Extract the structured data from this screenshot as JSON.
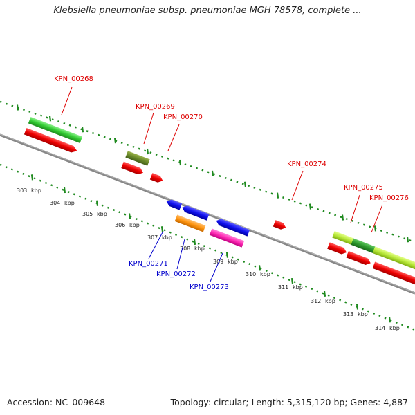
{
  "title": "Klebsiella pneumoniae subsp. pneumoniae MGH 78578, complete ...",
  "footer": {
    "accession": "Accession: NC_009648",
    "summary": "Topology: circular; Length: 5,315,120 bp; Genes: 4,887"
  },
  "colors": {
    "backbone": "#888888",
    "dots": "#1f8a1f",
    "top_label": "#dd0000",
    "bottom_label": "#0000cc"
  },
  "scale": {
    "unit": "kbp",
    "ticks": [
      303,
      304,
      305,
      306,
      307,
      308,
      309,
      310,
      311,
      312,
      313,
      314
    ]
  },
  "top_genes": [
    "KPN_00268",
    "KPN_00269",
    "KPN_00270",
    "KPN_00274",
    "KPN_00275",
    "KPN_00276"
  ],
  "bottom_genes": [
    "KPN_00271",
    "KPN_00272",
    "KPN_00273"
  ]
}
